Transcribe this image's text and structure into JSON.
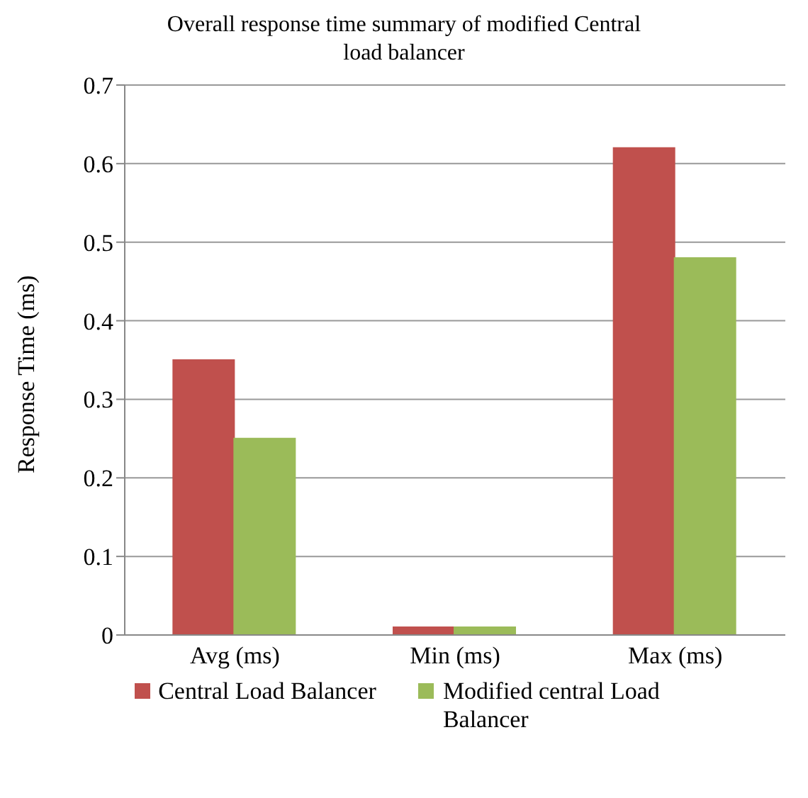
{
  "chart_data": {
    "type": "bar",
    "title": "Overall response time summary of modified Central load balancer",
    "ylabel": "Response Time (ms)",
    "categories": [
      "Avg (ms)",
      "Min (ms)",
      "Max (ms)"
    ],
    "series": [
      {
        "name": "Central Load Balancer",
        "color": "#c0504d",
        "values": [
          0.35,
          0.01,
          0.62
        ]
      },
      {
        "name": "Modified central Load Balancer",
        "color": "#9bbb59",
        "values": [
          0.25,
          0.01,
          0.48
        ]
      }
    ],
    "ylim": [
      0,
      0.7
    ],
    "yticks": [
      0,
      0.1,
      0.2,
      0.3,
      0.4,
      0.5,
      0.6,
      0.7
    ],
    "grid": "y",
    "legend": "bottom"
  }
}
